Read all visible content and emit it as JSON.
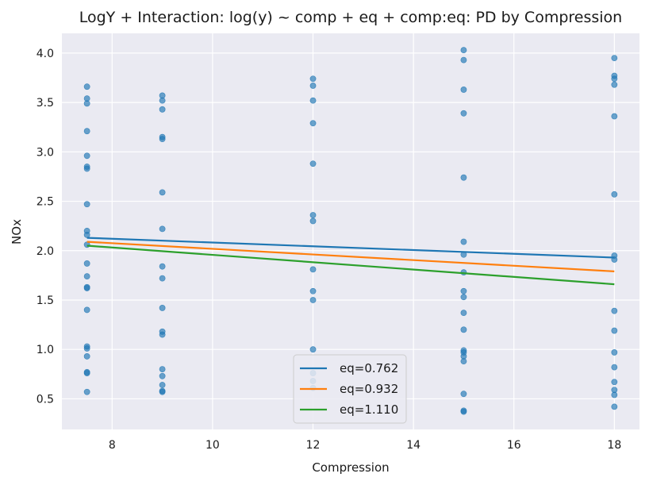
{
  "chart_data": {
    "type": "scatter",
    "title": "LogY + Interaction: log(y) ~ comp + eq + comp:eq: PD by Compression",
    "xlabel": "Compression",
    "ylabel": "NOx",
    "xlim": [
      7.0,
      18.5
    ],
    "ylim": [
      0.19,
      4.2
    ],
    "xticks": [
      8,
      10,
      12,
      14,
      16,
      18
    ],
    "yticks": [
      0.5,
      1.0,
      1.5,
      2.0,
      2.5,
      3.0,
      3.5,
      4.0
    ],
    "xtick_labels": [
      "8",
      "10",
      "12",
      "14",
      "16",
      "18"
    ],
    "ytick_labels": [
      "0.5",
      "1.0",
      "1.5",
      "2.0",
      "2.5",
      "3.0",
      "3.5",
      "4.0"
    ],
    "grid": true,
    "legend_position": "bottom-center",
    "point_color": "#1f77b4",
    "points": [
      {
        "x": 7.5,
        "y": 3.66
      },
      {
        "x": 7.5,
        "y": 3.54
      },
      {
        "x": 7.5,
        "y": 3.49
      },
      {
        "x": 7.5,
        "y": 3.21
      },
      {
        "x": 7.5,
        "y": 2.96
      },
      {
        "x": 7.5,
        "y": 2.85
      },
      {
        "x": 7.5,
        "y": 2.83
      },
      {
        "x": 7.5,
        "y": 2.47
      },
      {
        "x": 7.5,
        "y": 2.2
      },
      {
        "x": 7.5,
        "y": 2.16
      },
      {
        "x": 7.5,
        "y": 2.06
      },
      {
        "x": 7.5,
        "y": 1.87
      },
      {
        "x": 7.5,
        "y": 1.74
      },
      {
        "x": 7.5,
        "y": 1.63
      },
      {
        "x": 7.5,
        "y": 1.62
      },
      {
        "x": 7.5,
        "y": 1.4
      },
      {
        "x": 7.5,
        "y": 1.03
      },
      {
        "x": 7.5,
        "y": 1.01
      },
      {
        "x": 7.5,
        "y": 0.93
      },
      {
        "x": 7.5,
        "y": 0.77
      },
      {
        "x": 7.5,
        "y": 0.76
      },
      {
        "x": 7.5,
        "y": 0.57
      },
      {
        "x": 9,
        "y": 3.57
      },
      {
        "x": 9,
        "y": 3.52
      },
      {
        "x": 9,
        "y": 3.43
      },
      {
        "x": 9,
        "y": 3.15
      },
      {
        "x": 9,
        "y": 3.13
      },
      {
        "x": 9,
        "y": 2.59
      },
      {
        "x": 9,
        "y": 2.22
      },
      {
        "x": 9,
        "y": 1.84
      },
      {
        "x": 9,
        "y": 1.72
      },
      {
        "x": 9,
        "y": 1.42
      },
      {
        "x": 9,
        "y": 1.18
      },
      {
        "x": 9,
        "y": 1.15
      },
      {
        "x": 9,
        "y": 0.8
      },
      {
        "x": 9,
        "y": 0.73
      },
      {
        "x": 9,
        "y": 0.64
      },
      {
        "x": 9,
        "y": 0.58
      },
      {
        "x": 9,
        "y": 0.57
      },
      {
        "x": 12,
        "y": 3.74
      },
      {
        "x": 12,
        "y": 3.67
      },
      {
        "x": 12,
        "y": 3.52
      },
      {
        "x": 12,
        "y": 3.29
      },
      {
        "x": 12,
        "y": 2.88
      },
      {
        "x": 12,
        "y": 2.36
      },
      {
        "x": 12,
        "y": 2.3
      },
      {
        "x": 12,
        "y": 1.81
      },
      {
        "x": 12,
        "y": 1.59
      },
      {
        "x": 12,
        "y": 1.5
      },
      {
        "x": 12,
        "y": 1.0
      },
      {
        "x": 12,
        "y": 0.76
      },
      {
        "x": 12,
        "y": 0.68
      },
      {
        "x": 12,
        "y": 0.61
      },
      {
        "x": 15,
        "y": 4.03
      },
      {
        "x": 15,
        "y": 3.93
      },
      {
        "x": 15,
        "y": 3.63
      },
      {
        "x": 15,
        "y": 3.39
      },
      {
        "x": 15,
        "y": 2.74
      },
      {
        "x": 15,
        "y": 2.09
      },
      {
        "x": 15,
        "y": 1.96
      },
      {
        "x": 15,
        "y": 1.78
      },
      {
        "x": 15,
        "y": 1.59
      },
      {
        "x": 15,
        "y": 1.53
      },
      {
        "x": 15,
        "y": 1.37
      },
      {
        "x": 15,
        "y": 1.2
      },
      {
        "x": 15,
        "y": 0.99
      },
      {
        "x": 15,
        "y": 0.97
      },
      {
        "x": 15,
        "y": 0.93
      },
      {
        "x": 15,
        "y": 0.88
      },
      {
        "x": 15,
        "y": 0.55
      },
      {
        "x": 15,
        "y": 0.38
      },
      {
        "x": 15,
        "y": 0.37
      },
      {
        "x": 18,
        "y": 3.95
      },
      {
        "x": 18,
        "y": 3.77
      },
      {
        "x": 18,
        "y": 3.74
      },
      {
        "x": 18,
        "y": 3.68
      },
      {
        "x": 18,
        "y": 3.36
      },
      {
        "x": 18,
        "y": 2.57
      },
      {
        "x": 18,
        "y": 1.95
      },
      {
        "x": 18,
        "y": 1.91
      },
      {
        "x": 18,
        "y": 1.39
      },
      {
        "x": 18,
        "y": 1.19
      },
      {
        "x": 18,
        "y": 0.97
      },
      {
        "x": 18,
        "y": 0.82
      },
      {
        "x": 18,
        "y": 0.67
      },
      {
        "x": 18,
        "y": 0.59
      },
      {
        "x": 18,
        "y": 0.54
      },
      {
        "x": 18,
        "y": 0.42
      }
    ],
    "series": [
      {
        "name": "eq=0.762",
        "color": "#1f77b4",
        "x": [
          7.5,
          18
        ],
        "y": [
          2.13,
          1.93
        ]
      },
      {
        "name": "eq=0.932",
        "color": "#ff7f0e",
        "x": [
          7.5,
          18
        ],
        "y": [
          2.09,
          1.79
        ]
      },
      {
        "name": "eq=1.110",
        "color": "#2ca02c",
        "x": [
          7.5,
          18
        ],
        "y": [
          2.05,
          1.66
        ]
      }
    ]
  }
}
